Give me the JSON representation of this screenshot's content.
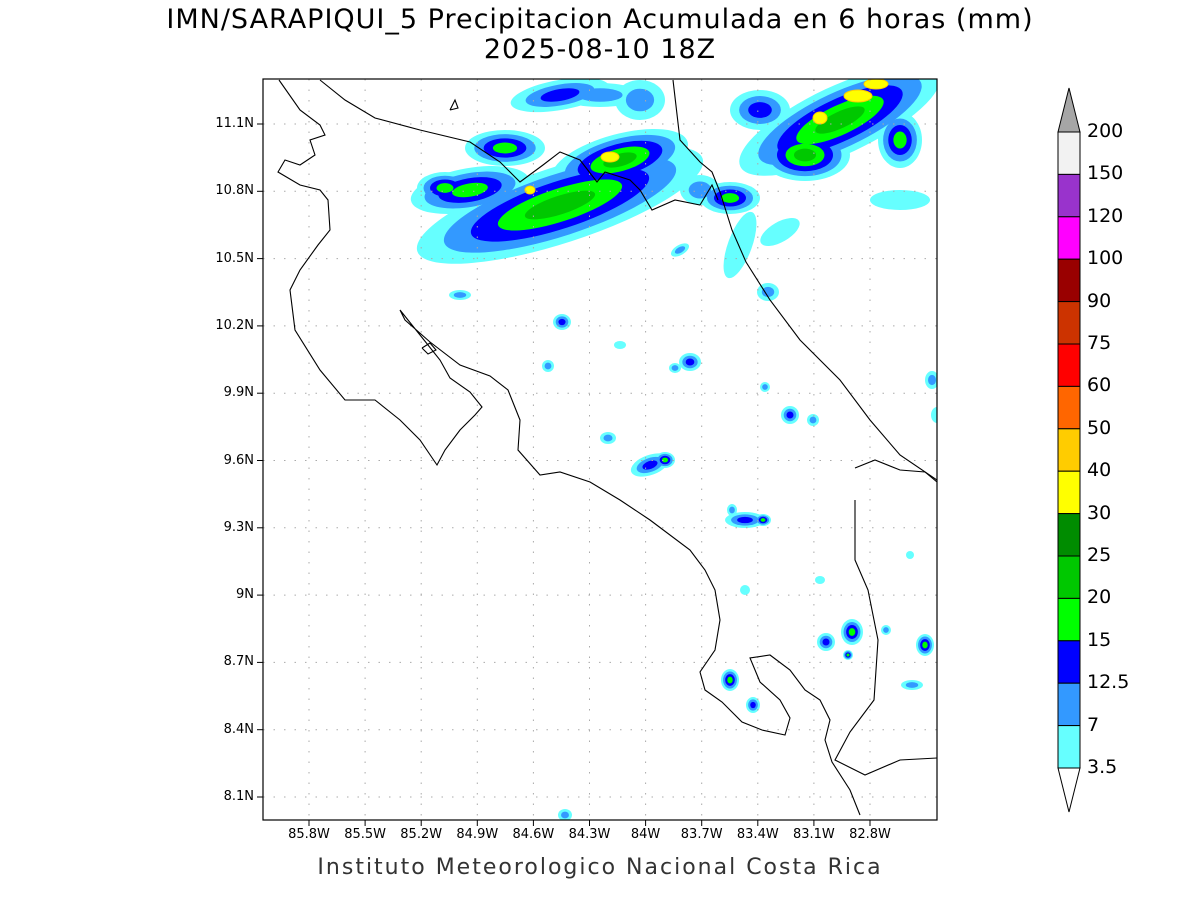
{
  "title": "IMN/SARAPIQUI_5 Precipitacion Acumulada en 6 horas (mm)",
  "subtitle": "2025-08-10 18Z",
  "footer": "Instituto Meteorologico Nacional Costa Rica",
  "chart_data": {
    "type": "heatmap",
    "title": "IMN/SARAPIQUI_5 Precipitacion Acumulada en 6 horas (mm)",
    "valid_time": "2025-08-10 18Z",
    "variable": "6-hour accumulated precipitation (mm)",
    "lon_range": [
      -86.05,
      -82.45
    ],
    "lat_range": [
      8.0,
      11.3
    ],
    "grid": true,
    "lat_ticks": [
      "11.1N",
      "10.8N",
      "10.5N",
      "10.2N",
      "9.9N",
      "9.6N",
      "9.3N",
      "9N",
      "8.7N",
      "8.4N",
      "8.1N"
    ],
    "lon_ticks": [
      "85.8W",
      "85.5W",
      "85.2W",
      "84.9W",
      "84.6W",
      "84.3W",
      "84W",
      "83.7W",
      "83.4W",
      "83.1W",
      "82.8W"
    ],
    "colorbar": {
      "placement": "right",
      "labels": [
        "3.5",
        "7",
        "12.5",
        "15",
        "20",
        "25",
        "30",
        "40",
        "50",
        "60",
        "75",
        "90",
        "100",
        "120",
        "150",
        "200"
      ],
      "colors": [
        "#66ffff",
        "#3399ff",
        "#0000ff",
        "#00ff00",
        "#00c800",
        "#008c00",
        "#ffff00",
        "#ffcc00",
        "#ff6600",
        "#ff0000",
        "#cc3300",
        "#990000",
        "#ff00ff",
        "#9933cc",
        "#f2f2f2"
      ],
      "over_color": "#a6a6a6",
      "under_color": "#ffffff"
    }
  }
}
